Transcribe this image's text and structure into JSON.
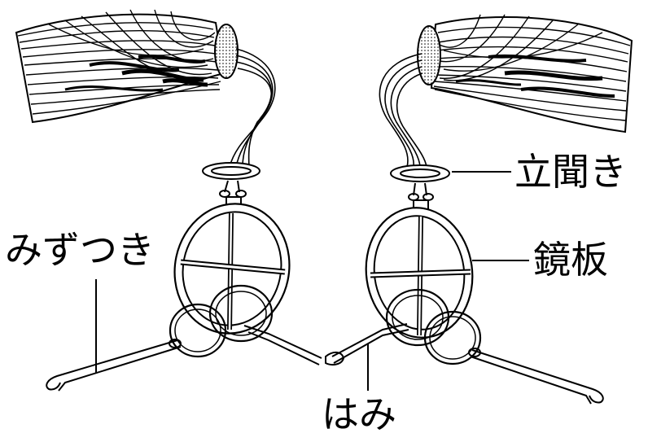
{
  "title": "",
  "labels": {
    "tachigiki": "立聞き",
    "kyouban": "鏡板",
    "mizutsuki": "みずつき",
    "hami": "はみ"
  },
  "colors": {
    "line": "#000000",
    "background": "#ffffff"
  },
  "icons": [
    "tassel-left-icon",
    "tassel-right-icon"
  ]
}
